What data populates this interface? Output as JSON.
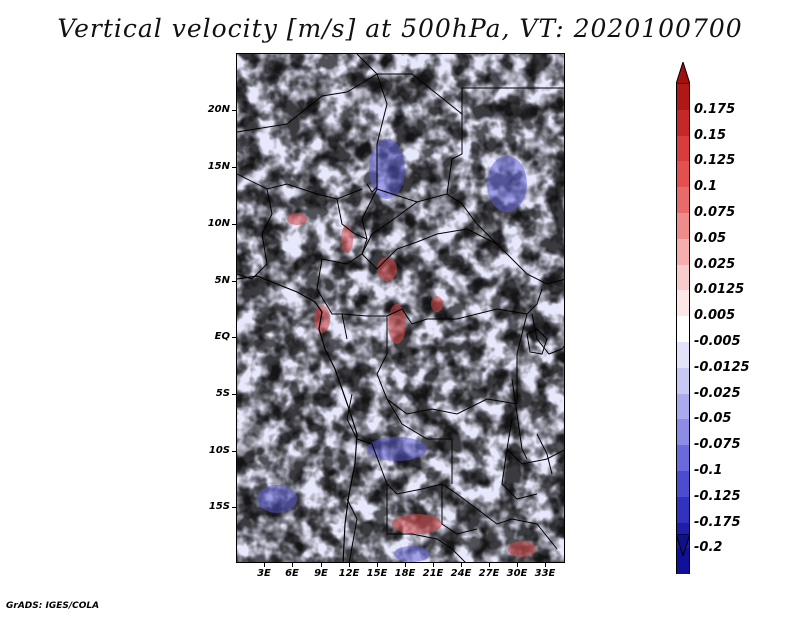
{
  "title": "Vertical velocity [m/s] at 500hPa, VT: 2020100700",
  "footer": "GrADS: IGES/COLA",
  "map": {
    "lat_labels": [
      "20N",
      "15N",
      "10N",
      "5N",
      "EQ",
      "5S",
      "10S",
      "15S"
    ],
    "lon_labels": [
      "3E",
      "6E",
      "9E",
      "12E",
      "15E",
      "18E",
      "21E",
      "24E",
      "27E",
      "30E",
      "33E"
    ]
  },
  "colorbar": {
    "labels": [
      "0.175",
      "0.15",
      "0.125",
      "0.1",
      "0.075",
      "0.05",
      "0.025",
      "0.0125",
      "0.005",
      "-0.005",
      "-0.0125",
      "-0.025",
      "-0.05",
      "-0.075",
      "-0.1",
      "-0.125",
      "-0.175",
      "-0.2"
    ],
    "colors": [
      "#b01818",
      "#c42828",
      "#d83c3c",
      "#e45050",
      "#e86a6a",
      "#ee8c8c",
      "#f4aeae",
      "#f8cccc",
      "#fce6e6",
      "#ffffff",
      "#e2e2fa",
      "#c8c8f4",
      "#aaaaee",
      "#8c8ce6",
      "#6a6adc",
      "#4c4cd0",
      "#3232c0",
      "#1e1ea8",
      "#10109a"
    ],
    "top_arrow_color": "#a01010",
    "bottom_arrow_color": "#10108a"
  }
}
